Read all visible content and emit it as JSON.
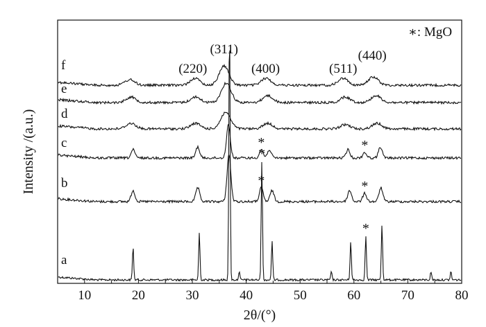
{
  "chart_data": {
    "type": "line",
    "title": "",
    "xlabel": "2θ/(°)",
    "ylabel": "Intensity /(a.u.)",
    "xlim": [
      5,
      80
    ],
    "x_ticks": [
      "10",
      "20",
      "30",
      "40",
      "50",
      "60",
      "70",
      "80"
    ],
    "y_ticks": false,
    "grid": false,
    "legend": {
      "text": "∗: MgO",
      "position": "top-right"
    },
    "peak_labels": [
      "(220)",
      "(311)",
      "(400)",
      "(511)",
      "(440)"
    ],
    "peak_positions": [
      30.1,
      35.9,
      43.6,
      58.0,
      63.4
    ],
    "series": [
      {
        "name": "a",
        "peaks": [
          {
            "x": 19.0,
            "h": 0.12
          },
          {
            "x": 31.3,
            "h": 0.17
          },
          {
            "x": 36.9,
            "h": 0.93
          },
          {
            "x": 38.7,
            "h": 0.03
          },
          {
            "x": 42.9,
            "h": 0.43
          },
          {
            "x": 44.8,
            "h": 0.14
          },
          {
            "x": 55.8,
            "h": 0.03
          },
          {
            "x": 59.4,
            "h": 0.14
          },
          {
            "x": 62.2,
            "h": 0.16
          },
          {
            "x": 65.2,
            "h": 0.2
          },
          {
            "x": 74.3,
            "h": 0.03
          },
          {
            "x": 78.0,
            "h": 0.03
          }
        ],
        "mgo_peaks": [
          42.9,
          62.2
        ]
      },
      {
        "name": "b",
        "peaks": [
          {
            "x": 19.0,
            "h": 0.04
          },
          {
            "x": 31.0,
            "h": 0.05
          },
          {
            "x": 36.8,
            "h": 0.17
          },
          {
            "x": 42.8,
            "h": 0.05
          },
          {
            "x": 44.8,
            "h": 0.04
          },
          {
            "x": 59.2,
            "h": 0.04
          },
          {
            "x": 62.0,
            "h": 0.03
          },
          {
            "x": 65.0,
            "h": 0.05
          }
        ],
        "mgo_peaks": [
          42.8,
          62.0
        ]
      },
      {
        "name": "c",
        "peaks": [
          {
            "x": 19.0,
            "h": 0.03
          },
          {
            "x": 31.0,
            "h": 0.04
          },
          {
            "x": 36.7,
            "h": 0.12
          },
          {
            "x": 42.8,
            "h": 0.03
          },
          {
            "x": 44.3,
            "h": 0.03
          },
          {
            "x": 58.9,
            "h": 0.03
          },
          {
            "x": 62.0,
            "h": 0.02
          },
          {
            "x": 64.9,
            "h": 0.04
          }
        ],
        "mgo_peaks": [
          42.8,
          62.0
        ]
      },
      {
        "name": "d",
        "peaks": [
          {
            "x": 18.6,
            "h": 0.02
          },
          {
            "x": 30.6,
            "h": 0.02
          },
          {
            "x": 36.2,
            "h": 0.06
          },
          {
            "x": 44.0,
            "h": 0.02
          },
          {
            "x": 58.4,
            "h": 0.015
          },
          {
            "x": 64.3,
            "h": 0.02
          }
        ],
        "mgo_peaks": []
      },
      {
        "name": "e",
        "peaks": [
          {
            "x": 18.6,
            "h": 0.02
          },
          {
            "x": 30.6,
            "h": 0.02
          },
          {
            "x": 36.3,
            "h": 0.07
          },
          {
            "x": 44.0,
            "h": 0.025
          },
          {
            "x": 58.4,
            "h": 0.02
          },
          {
            "x": 64.1,
            "h": 0.025
          }
        ],
        "mgo_peaks": []
      },
      {
        "name": "f",
        "peaks": [
          {
            "x": 18.4,
            "h": 0.02
          },
          {
            "x": 30.5,
            "h": 0.025
          },
          {
            "x": 35.9,
            "h": 0.07
          },
          {
            "x": 43.7,
            "h": 0.025
          },
          {
            "x": 58.0,
            "h": 0.025
          },
          {
            "x": 63.6,
            "h": 0.03
          }
        ],
        "mgo_peaks": []
      }
    ]
  }
}
